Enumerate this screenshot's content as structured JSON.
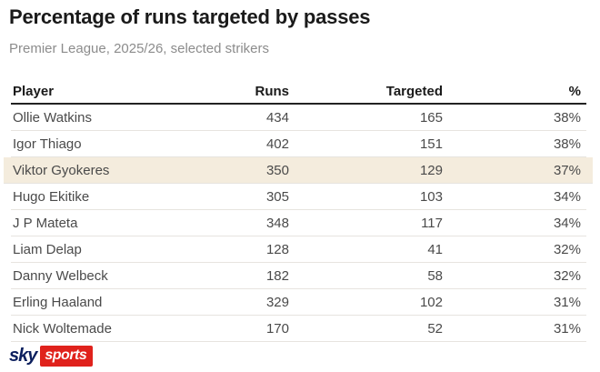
{
  "header": {
    "title": "Percentage of runs targeted by passes",
    "subtitle": "Premier League, 2025/26, selected strikers"
  },
  "table": {
    "columns": [
      "Player",
      "Runs",
      "Targeted",
      "%"
    ],
    "rows": [
      {
        "player": "Ollie Watkins",
        "runs": "434",
        "targeted": "165",
        "pct": "38%",
        "highlight": false
      },
      {
        "player": "Igor Thiago",
        "runs": "402",
        "targeted": "151",
        "pct": "38%",
        "highlight": false
      },
      {
        "player": "Viktor Gyokeres",
        "runs": "350",
        "targeted": "129",
        "pct": "37%",
        "highlight": true
      },
      {
        "player": "Hugo Ekitike",
        "runs": "305",
        "targeted": "103",
        "pct": "34%",
        "highlight": false
      },
      {
        "player": "J P Mateta",
        "runs": "348",
        "targeted": "117",
        "pct": "34%",
        "highlight": false
      },
      {
        "player": "Liam Delap",
        "runs": "128",
        "targeted": "41",
        "pct": "32%",
        "highlight": false
      },
      {
        "player": "Danny Welbeck",
        "runs": "182",
        "targeted": "58",
        "pct": "32%",
        "highlight": false
      },
      {
        "player": "Erling Haaland",
        "runs": "329",
        "targeted": "102",
        "pct": "31%",
        "highlight": false
      },
      {
        "player": "Nick Woltemade",
        "runs": "170",
        "targeted": "52",
        "pct": "31%",
        "highlight": false
      }
    ]
  },
  "branding": {
    "sky_text": "sky",
    "sports_text": "sports",
    "navy": "#0c1f5e",
    "red": "#e0221c"
  },
  "colors": {
    "title": "#1a1a1a",
    "subtitle": "#8c8c8c",
    "row_text": "#4a4a4a",
    "separator": "#e7e4df",
    "header_rule": "#222222",
    "highlight_row": "#f4ecdd"
  },
  "chart_data": {
    "type": "table",
    "title": "Percentage of runs targeted by passes",
    "subtitle": "Premier League, 2025/26, selected strikers",
    "columns": [
      "Player",
      "Runs",
      "Targeted",
      "%"
    ],
    "rows": [
      [
        "Ollie Watkins",
        434,
        165,
        "38%"
      ],
      [
        "Igor Thiago",
        402,
        151,
        "38%"
      ],
      [
        "Viktor Gyokeres",
        350,
        129,
        "37%"
      ],
      [
        "Hugo Ekitike",
        305,
        103,
        "34%"
      ],
      [
        "J P Mateta",
        348,
        117,
        "34%"
      ],
      [
        "Liam Delap",
        128,
        41,
        "32%"
      ],
      [
        "Danny Welbeck",
        182,
        58,
        "32%"
      ],
      [
        "Erling Haaland",
        329,
        102,
        "31%"
      ],
      [
        "Nick Woltemade",
        170,
        52,
        "31%"
      ]
    ],
    "highlighted_row": "Viktor Gyokeres",
    "source": "Sky Sports"
  }
}
